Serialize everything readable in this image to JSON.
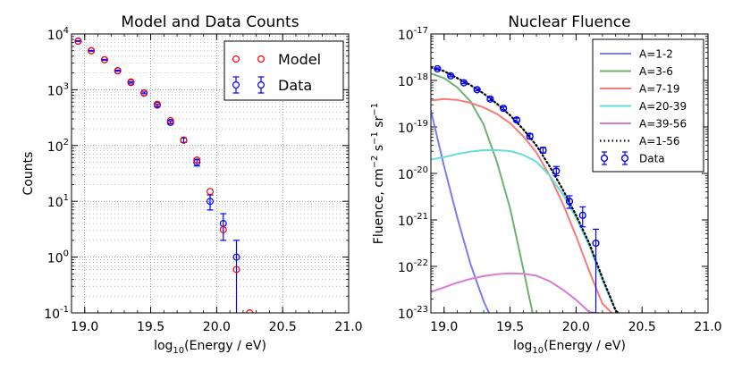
{
  "chart_data": [
    {
      "type": "scatter",
      "title": "Model and Data Counts",
      "xlabel": "log10(Energy / eV)",
      "ylabel": "Counts",
      "xlim": [
        18.9,
        21.0
      ],
      "ylim": [
        0.1,
        10000
      ],
      "yscale": "log",
      "grid": true,
      "legend_position": "top-right",
      "xticks": [
        "19.0",
        "19.5",
        "20.0",
        "20.5",
        "21.0"
      ],
      "yticks": [
        {
          "base": "10",
          "exp": "-1",
          "value": 0.1
        },
        {
          "base": "10",
          "exp": "0",
          "value": 1
        },
        {
          "base": "10",
          "exp": "1",
          "value": 10
        },
        {
          "base": "10",
          "exp": "2",
          "value": 100
        },
        {
          "base": "10",
          "exp": "3",
          "value": 1000
        },
        {
          "base": "10",
          "exp": "4",
          "value": 10000
        }
      ],
      "series": [
        {
          "name": "Model",
          "color": "#ff0000",
          "x": [
            18.95,
            19.05,
            19.15,
            19.25,
            19.35,
            19.45,
            19.55,
            19.65,
            19.75,
            19.85,
            19.95,
            20.05,
            20.15,
            20.25
          ],
          "y": [
            7400,
            5000,
            3450,
            2180,
            1380,
            870,
            550,
            280,
            125,
            55,
            15,
            3.1,
            0.6,
            0.1
          ]
        },
        {
          "name": "Data",
          "color": "#0000ff",
          "x": [
            18.95,
            19.05,
            19.15,
            19.25,
            19.35,
            19.45,
            19.55,
            19.65,
            19.75,
            19.85,
            19.95,
            20.05,
            20.15
          ],
          "y": [
            7450,
            5000,
            3450,
            2200,
            1350,
            880,
            530,
            260,
            125,
            50,
            10,
            4,
            1
          ],
          "err_low": [
            86,
            71,
            59,
            47,
            37,
            30,
            23,
            16,
            11,
            7,
            3,
            2,
            1
          ],
          "err_high": [
            86,
            71,
            59,
            47,
            37,
            30,
            23,
            16,
            11,
            7,
            3,
            2,
            1
          ]
        }
      ]
    },
    {
      "type": "line",
      "title": "Nuclear Fluence",
      "xlabel": "log10(Energy / eV)",
      "ylabel": "Fluence, cm-2 s-1 sr-1",
      "xlim": [
        18.9,
        21.0
      ],
      "ylim": [
        1e-23,
        1e-17
      ],
      "yscale": "log",
      "grid": false,
      "legend_position": "top-right",
      "xticks": [
        "19.0",
        "19.5",
        "20.0",
        "20.5",
        "21.0"
      ],
      "yticks": [
        {
          "base": "10",
          "exp": "-23",
          "value": 1e-23
        },
        {
          "base": "10",
          "exp": "-22",
          "value": 1e-22
        },
        {
          "base": "10",
          "exp": "-21",
          "value": 1e-21
        },
        {
          "base": "10",
          "exp": "-20",
          "value": 1e-20
        },
        {
          "base": "10",
          "exp": "-19",
          "value": 1e-19
        },
        {
          "base": "10",
          "exp": "-18",
          "value": 1e-18
        },
        {
          "base": "10",
          "exp": "-17",
          "value": 1e-17
        }
      ],
      "series": [
        {
          "name": "A=1-2",
          "color": "#7b7bf2",
          "style": "solid",
          "x": [
            18.9,
            19.0,
            19.1,
            19.2,
            19.3,
            19.34
          ],
          "log_y": [
            -18.65,
            -19.85,
            -20.95,
            -21.95,
            -22.75,
            -23.0
          ]
        },
        {
          "name": "A=3-6",
          "color": "#6fb26f",
          "style": "solid",
          "x": [
            18.9,
            19.0,
            19.1,
            19.2,
            19.3,
            19.4,
            19.5,
            19.6,
            19.67
          ],
          "log_y": [
            -17.85,
            -17.95,
            -18.15,
            -18.45,
            -18.95,
            -19.75,
            -20.75,
            -22.05,
            -23.0
          ]
        },
        {
          "name": "A=7-19",
          "color": "#f47a7a",
          "style": "solid",
          "x": [
            18.9,
            19.0,
            19.1,
            19.2,
            19.3,
            19.4,
            19.5,
            19.6,
            19.7,
            19.8,
            19.9,
            20.0,
            20.1,
            20.2,
            20.27
          ],
          "log_y": [
            -18.43,
            -18.4,
            -18.42,
            -18.48,
            -18.58,
            -18.72,
            -18.92,
            -19.2,
            -19.55,
            -20.05,
            -20.65,
            -21.35,
            -22.1,
            -22.8,
            -23.0
          ]
        },
        {
          "name": "A=20-39",
          "color": "#66dddd",
          "style": "solid",
          "x": [
            18.9,
            19.0,
            19.1,
            19.2,
            19.3,
            19.4,
            19.5,
            19.6,
            19.7,
            19.8,
            19.9,
            20.0,
            20.1,
            20.2,
            20.3,
            20.32
          ],
          "log_y": [
            -19.7,
            -19.65,
            -19.58,
            -19.53,
            -19.5,
            -19.5,
            -19.52,
            -19.6,
            -19.75,
            -20.05,
            -20.45,
            -20.95,
            -21.55,
            -22.3,
            -22.95,
            -23.0
          ]
        },
        {
          "name": "A=39-56",
          "color": "#d97ad9",
          "style": "solid",
          "x": [
            18.9,
            19.0,
            19.1,
            19.2,
            19.3,
            19.4,
            19.5,
            19.6,
            19.7,
            19.8,
            19.9,
            20.0,
            20.1,
            20.15
          ],
          "log_y": [
            -22.55,
            -22.45,
            -22.35,
            -22.27,
            -22.21,
            -22.17,
            -22.15,
            -22.16,
            -22.2,
            -22.32,
            -22.5,
            -22.72,
            -22.98,
            -23.0
          ]
        },
        {
          "name": "A=1-56",
          "color": "#000000",
          "style": "dotted",
          "x": [
            18.9,
            19.0,
            19.1,
            19.2,
            19.3,
            19.4,
            19.5,
            19.6,
            19.7,
            19.8,
            19.9,
            20.0,
            20.1,
            20.2,
            20.3,
            20.32
          ],
          "log_y": [
            -17.72,
            -17.8,
            -17.95,
            -18.1,
            -18.28,
            -18.5,
            -18.75,
            -19.05,
            -19.4,
            -19.85,
            -20.35,
            -20.9,
            -21.5,
            -22.25,
            -22.95,
            -23.0
          ]
        }
      ],
      "data_points": {
        "name": "Data",
        "color": "#0000ff",
        "x": [
          18.95,
          19.05,
          19.15,
          19.25,
          19.35,
          19.45,
          19.55,
          19.65,
          19.75,
          19.85,
          19.95,
          20.05,
          20.15
        ],
        "log_y": [
          -17.75,
          -17.9,
          -18.05,
          -18.2,
          -18.4,
          -18.6,
          -18.85,
          -19.2,
          -19.5,
          -19.95,
          -20.6,
          -20.9,
          -21.5
        ],
        "log_err_low": [
          0.02,
          0.02,
          0.02,
          0.02,
          0.03,
          0.03,
          0.04,
          0.05,
          0.06,
          0.1,
          0.15,
          0.25,
          1.5
        ],
        "log_err_high": [
          0.02,
          0.02,
          0.02,
          0.02,
          0.03,
          0.03,
          0.04,
          0.05,
          0.06,
          0.1,
          0.12,
          0.18,
          0.3
        ]
      }
    }
  ]
}
